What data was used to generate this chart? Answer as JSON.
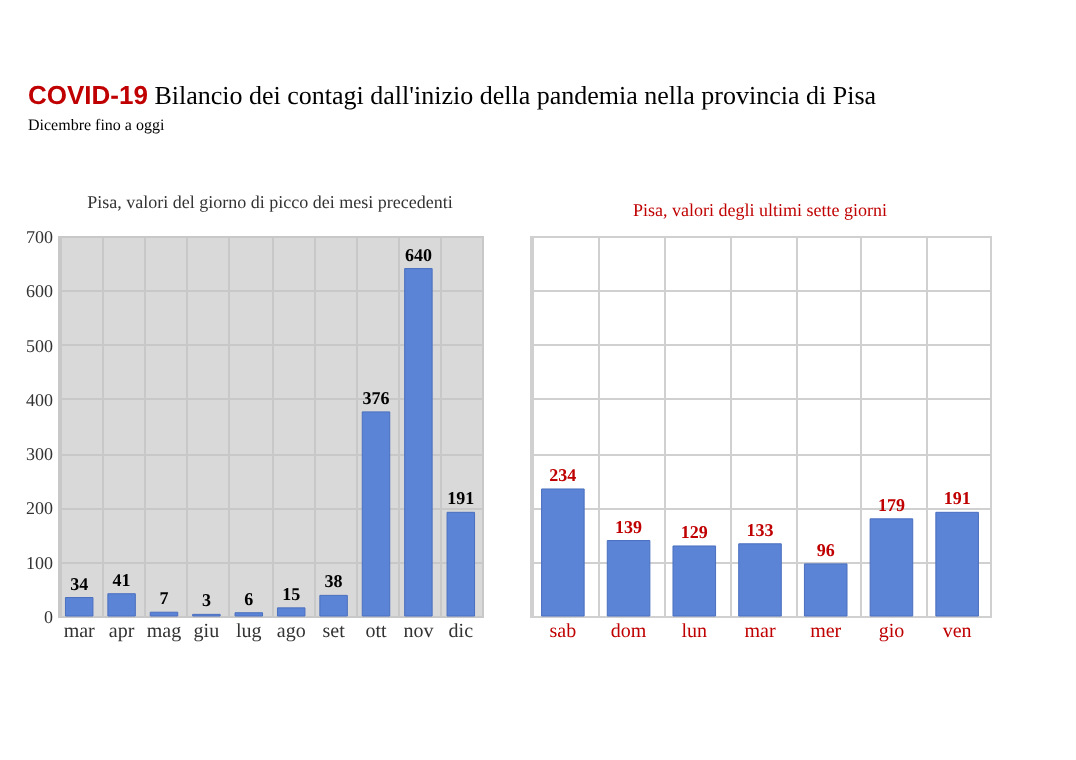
{
  "chart_data": [
    {
      "type": "bar",
      "title": "Pisa, valori del giorno di picco dei mesi precedenti",
      "annotations": [
        "COVID-19 Bilancio dei contagi dall'inizio della pandemia nella provincia di Pisa",
        "Dicembre fino a oggi"
      ],
      "categories": [
        "mar",
        "apr",
        "mag",
        "giu",
        "lug",
        "ago",
        "set",
        "ott",
        "nov",
        "dic"
      ],
      "values": [
        34,
        41,
        7,
        3,
        6,
        15,
        38,
        376,
        640,
        191
      ],
      "color": "#5b84d6",
      "ylim": [
        0,
        700
      ],
      "yticks": [
        0,
        100,
        200,
        300,
        400,
        500,
        600,
        700
      ],
      "grid": true,
      "data_labels": true
    },
    {
      "type": "bar",
      "title": "Pisa, valori degli ultimi sette giorni",
      "categories": [
        "sab",
        "dom",
        "lun",
        "mar",
        "mer",
        "gio",
        "ven"
      ],
      "values": [
        234,
        139,
        129,
        133,
        96,
        179,
        191
      ],
      "color": "#5b84d6",
      "ylim": [
        0,
        700
      ],
      "yticks": [
        {
          "value": 0,
          "label": null
        },
        {
          "value": 100,
          "label": null
        },
        {
          "value": 200,
          "label": null
        },
        {
          "value": 300,
          "label": null
        },
        {
          "value": 400,
          "label": null
        },
        {
          "value": 500,
          "label": null
        },
        {
          "value": 600,
          "label": null
        },
        {
          "value": 700,
          "label": null
        }
      ],
      "grid": true,
      "data_labels": true,
      "tick_labels": "x"
    }
  ]
}
